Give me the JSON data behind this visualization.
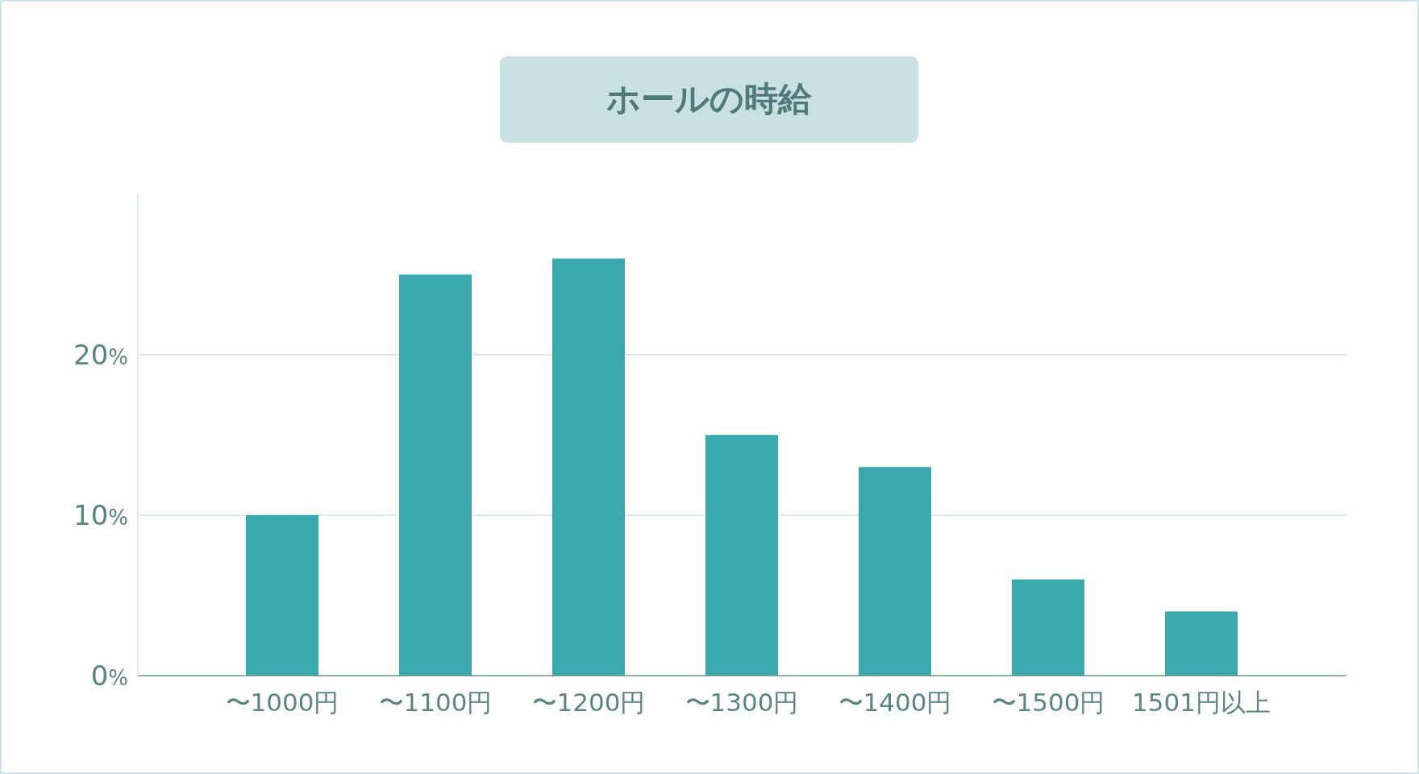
{
  "chart_data": {
    "type": "bar",
    "title": "ホールの時給",
    "categories": [
      "〜1000円",
      "〜1100円",
      "〜1200円",
      "〜1300円",
      "〜1400円",
      "〜1500円",
      "1501円以上"
    ],
    "values": [
      10,
      25,
      26,
      15,
      13,
      6,
      4
    ],
    "color": "#3aa9ad",
    "ylim": [
      0,
      30
    ],
    "yticks": [
      {
        "value": 0,
        "label": "0%"
      },
      {
        "value": 10,
        "label": "10%"
      },
      {
        "value": 20,
        "label": "20%"
      }
    ],
    "grid": "y"
  }
}
